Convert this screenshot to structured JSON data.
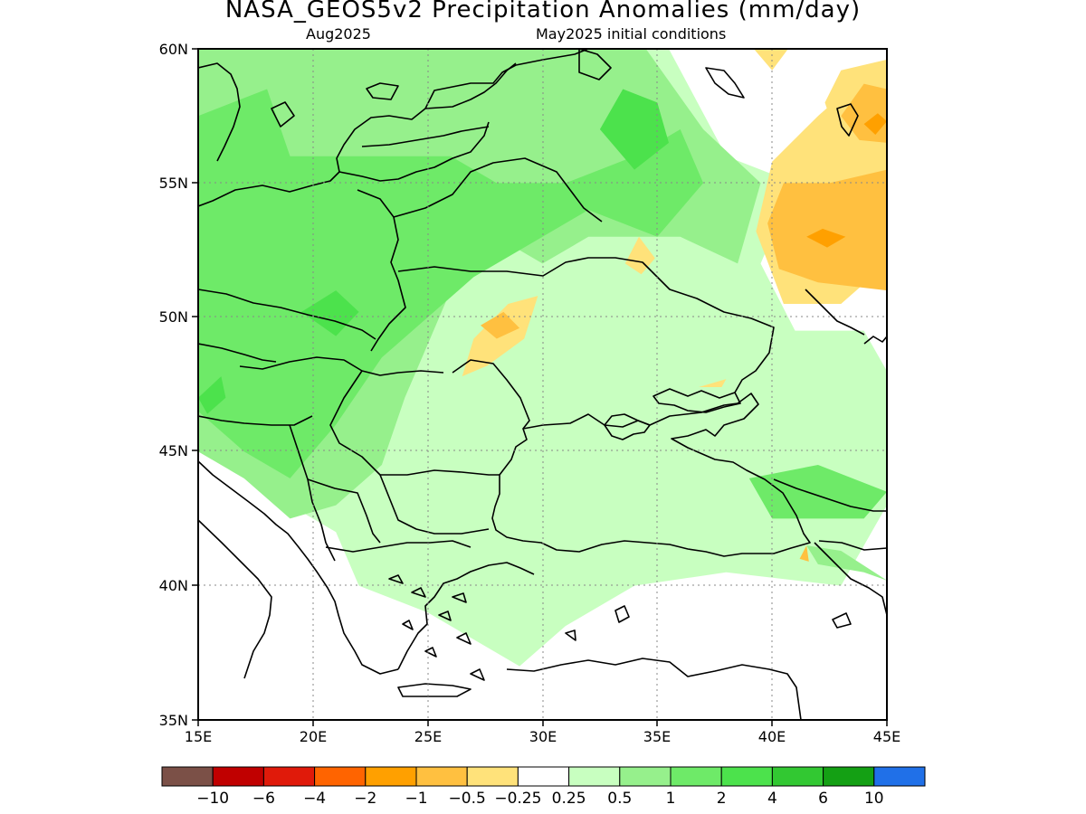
{
  "title": "NASA_GEOS5v2 Precipitation Anomalies (mm/day)",
  "subtitle_left": "Aug2025",
  "subtitle_right": "May2025 initial conditions",
  "lat_labels": [
    "60N",
    "55N",
    "50N",
    "45N",
    "40N",
    "35N"
  ],
  "lon_labels": [
    "15E",
    "20E",
    "25E",
    "30E",
    "35E",
    "40E",
    "45E"
  ],
  "map_extent": {
    "lon": [
      15,
      45
    ],
    "lat": [
      35,
      60
    ]
  },
  "colorbar": {
    "colors": [
      "#7b5047",
      "#c00000",
      "#e01a0a",
      "#ff6400",
      "#ffa000",
      "#ffc040",
      "#ffe27a",
      "#ffffff",
      "#c8ffc0",
      "#96f08c",
      "#6eea68",
      "#4ce24c",
      "#32c832",
      "#14a014",
      "#2070e8"
    ],
    "labels": [
      "−10",
      "−6",
      "−4",
      "−2",
      "−1",
      "−0.5",
      "−0.25",
      "0.25",
      "0.5",
      "1",
      "2",
      "4",
      "6",
      "10"
    ]
  },
  "anomaly_regions": [
    {
      "level": "0.25",
      "color": "#c8ffc0",
      "ring": [
        [
          15,
          60
        ],
        [
          35.5,
          60
        ],
        [
          38,
          56
        ],
        [
          41,
          55
        ],
        [
          39.5,
          52
        ],
        [
          41,
          49.5
        ],
        [
          44,
          49.5
        ],
        [
          45,
          48
        ],
        [
          45,
          43
        ],
        [
          43,
          40
        ],
        [
          38,
          40.5
        ],
        [
          34,
          40
        ],
        [
          31,
          38.5
        ],
        [
          29,
          37
        ],
        [
          25,
          39
        ],
        [
          22,
          40
        ],
        [
          21,
          42
        ],
        [
          17,
          44
        ],
        [
          15,
          45
        ]
      ]
    },
    {
      "level": "0.5",
      "color": "#96f08c",
      "ring": [
        [
          15,
          60
        ],
        [
          34.5,
          60
        ],
        [
          37,
          57
        ],
        [
          39.5,
          55
        ],
        [
          38.5,
          52
        ],
        [
          36,
          53
        ],
        [
          32,
          53
        ],
        [
          30,
          52
        ],
        [
          28,
          53
        ],
        [
          26,
          51
        ],
        [
          25,
          49
        ],
        [
          24,
          47
        ],
        [
          23,
          44.5
        ],
        [
          21,
          43
        ],
        [
          19,
          42.5
        ],
        [
          17,
          44
        ],
        [
          15,
          45
        ]
      ]
    },
    {
      "level": "1",
      "color": "#6eea68",
      "ring": [
        [
          15,
          57.5
        ],
        [
          18,
          58.5
        ],
        [
          19,
          56
        ],
        [
          23,
          56
        ],
        [
          26,
          56
        ],
        [
          28,
          55
        ],
        [
          31,
          55
        ],
        [
          34,
          56
        ],
        [
          36,
          57
        ],
        [
          37,
          55
        ],
        [
          35,
          53
        ],
        [
          32,
          54
        ],
        [
          29,
          52.5
        ],
        [
          27,
          51.5
        ],
        [
          25,
          50
        ],
        [
          23,
          48.5
        ],
        [
          21,
          46
        ],
        [
          19,
          44
        ],
        [
          17,
          45
        ],
        [
          15,
          46.5
        ]
      ]
    },
    {
      "level": "2",
      "color": "#4ce24c",
      "ring": [
        [
          32.5,
          57
        ],
        [
          33.5,
          58.5
        ],
        [
          35,
          58
        ],
        [
          35.5,
          56.5
        ],
        [
          34,
          55.5
        ]
      ]
    },
    {
      "level": "2",
      "color": "#4ce24c",
      "ring": [
        [
          19.5,
          50.2
        ],
        [
          21,
          51
        ],
        [
          22,
          50.2
        ],
        [
          21,
          49.3
        ]
      ]
    },
    {
      "level": "2",
      "color": "#4ce24c",
      "ring": [
        [
          15,
          47
        ],
        [
          16,
          47.8
        ],
        [
          16.2,
          47
        ],
        [
          15.4,
          46.4
        ]
      ]
    },
    {
      "level": "1",
      "color": "#6eea68",
      "ring": [
        [
          39,
          44
        ],
        [
          42,
          44.5
        ],
        [
          45,
          43.5
        ],
        [
          44,
          42.5
        ],
        [
          40,
          42.5
        ]
      ]
    },
    {
      "level": "0.5",
      "color": "#96f08c",
      "ring": [
        [
          41.5,
          41.5
        ],
        [
          43,
          41.3
        ],
        [
          45,
          40.2
        ],
        [
          44,
          40.5
        ],
        [
          42,
          40.8
        ]
      ]
    },
    {
      "level": "-0.25",
      "color": "#ffe27a",
      "ring": [
        [
          39.3,
          53.2
        ],
        [
          40,
          55.8
        ],
        [
          42,
          57.5
        ],
        [
          44,
          59
        ],
        [
          45,
          59.2
        ],
        [
          45,
          52
        ],
        [
          43,
          50.5
        ],
        [
          40.5,
          50.5
        ]
      ]
    },
    {
      "level": "-0.5",
      "color": "#ffc040",
      "ring": [
        [
          39.8,
          53.5
        ],
        [
          40.5,
          55
        ],
        [
          42.5,
          55
        ],
        [
          45,
          55.5
        ],
        [
          45,
          51
        ],
        [
          42,
          51.3
        ],
        [
          40.3,
          51.8
        ]
      ]
    },
    {
      "level": "-0.25",
      "color": "#ffe27a",
      "ring": [
        [
          42.3,
          58
        ],
        [
          43,
          59.2
        ],
        [
          45,
          59.6
        ],
        [
          45,
          55.8
        ],
        [
          43,
          56.2
        ]
      ]
    },
    {
      "level": "-0.5",
      "color": "#ffc040",
      "ring": [
        [
          43,
          57.5
        ],
        [
          44,
          58.7
        ],
        [
          45,
          58.5
        ],
        [
          45,
          56.5
        ],
        [
          43.8,
          56.6
        ]
      ]
    },
    {
      "level": "-1",
      "color": "#ffa000",
      "ring": [
        [
          41.5,
          53
        ],
        [
          42.2,
          53.3
        ],
        [
          43.2,
          53
        ],
        [
          42.4,
          52.6
        ]
      ]
    },
    {
      "level": "-1",
      "color": "#ffa000",
      "ring": [
        [
          44,
          57.2
        ],
        [
          44.6,
          57.6
        ],
        [
          45,
          57.3
        ],
        [
          44.5,
          56.8
        ]
      ]
    },
    {
      "level": "-0.25",
      "color": "#ffe27a",
      "ring": [
        [
          26.5,
          47.8
        ],
        [
          27,
          49.2
        ],
        [
          28.5,
          50.5
        ],
        [
          29.8,
          50.8
        ],
        [
          29.2,
          49.2
        ],
        [
          27.6,
          48.2
        ]
      ]
    },
    {
      "level": "-0.5",
      "color": "#ffc040",
      "ring": [
        [
          27.3,
          49.7
        ],
        [
          28.3,
          50.2
        ],
        [
          29,
          49.6
        ],
        [
          28,
          49.2
        ]
      ]
    },
    {
      "level": "-0.25",
      "color": "#ffe27a",
      "ring": [
        [
          33.6,
          52
        ],
        [
          34.2,
          53
        ],
        [
          34.9,
          52.2
        ],
        [
          34.3,
          51.6
        ]
      ]
    },
    {
      "level": "-0.25",
      "color": "#ffe27a",
      "ring": [
        [
          36.8,
          47.4
        ],
        [
          38,
          47.7
        ],
        [
          37.8,
          47.4
        ]
      ]
    },
    {
      "level": "-0.25",
      "color": "#ffe27a",
      "ring": [
        [
          39.2,
          60
        ],
        [
          40,
          59.2
        ],
        [
          40.7,
          60
        ]
      ]
    },
    {
      "level": "-0.5",
      "color": "#ffc040",
      "ring": [
        [
          41.2,
          41
        ],
        [
          41.5,
          41.5
        ],
        [
          41.6,
          40.9
        ]
      ]
    }
  ]
}
